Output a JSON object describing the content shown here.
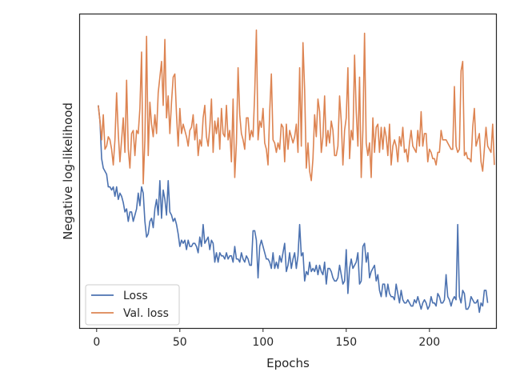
{
  "chart_data": {
    "type": "line",
    "title": "",
    "xlabel": "Epochs",
    "ylabel": "Negative log-likelihood",
    "xlim": [
      -10,
      240
    ],
    "x_ticks": [
      0,
      50,
      100,
      150,
      200
    ],
    "ylim": [
      0,
      100
    ],
    "y_ticks_visible": false,
    "grid": false,
    "legend_position": "lower-left",
    "series": [
      {
        "name": "Loss",
        "color": "#4c72b0",
        "values": [
          71,
          66,
          54,
          51,
          50,
          49,
          45,
          45,
          44,
          45,
          42,
          45,
          41,
          43,
          42,
          40,
          37,
          38,
          34,
          37,
          37,
          34,
          36,
          38,
          43,
          39,
          45,
          43,
          34,
          29,
          30,
          34,
          35,
          32,
          38,
          41,
          36,
          47,
          35,
          44,
          41,
          36,
          47,
          37,
          36,
          34,
          35,
          33,
          30,
          26,
          28,
          27,
          28,
          25,
          28,
          26,
          26,
          27,
          27,
          26,
          24,
          29,
          26,
          33,
          27,
          28,
          29,
          25,
          28,
          27,
          21,
          24,
          21,
          24,
          23,
          23,
          22,
          24,
          22,
          23,
          23,
          21,
          26,
          22,
          22,
          21,
          24,
          22,
          21,
          23,
          22,
          20,
          20,
          31,
          31,
          28,
          16,
          26,
          28,
          26,
          24,
          22,
          22,
          21,
          19,
          24,
          19,
          21,
          19,
          23,
          21,
          24,
          27,
          18,
          20,
          24,
          19,
          22,
          24,
          19,
          23,
          33,
          23,
          24,
          15,
          18,
          17,
          21,
          18,
          19,
          18,
          20,
          17,
          20,
          18,
          17,
          21,
          14,
          19,
          19,
          18,
          16,
          15,
          15,
          16,
          20,
          17,
          14,
          15,
          25,
          11,
          19,
          22,
          19,
          20,
          21,
          24,
          14,
          15,
          26,
          27,
          21,
          24,
          16,
          18,
          19,
          20,
          15,
          17,
          12,
          10,
          14,
          14,
          10,
          14,
          11,
          10,
          10,
          9,
          14,
          11,
          8,
          12,
          9,
          8,
          8,
          9,
          8,
          7,
          7,
          9,
          8,
          10,
          8,
          6,
          8,
          9,
          8,
          6,
          7,
          10,
          8,
          8,
          7,
          11,
          10,
          8,
          8,
          9,
          17,
          10,
          9,
          7,
          9,
          10,
          9,
          33,
          10,
          8,
          12,
          11,
          6,
          6,
          7,
          10,
          9,
          8,
          8,
          9,
          5,
          8,
          7,
          12,
          12,
          8
        ]
      },
      {
        "name": "Val. loss",
        "color": "#dd8452",
        "values": [
          71,
          66,
          60,
          68,
          57,
          58,
          61,
          60,
          57,
          52,
          60,
          75,
          62,
          53,
          60,
          67,
          56,
          79,
          57,
          51,
          62,
          63,
          55,
          63,
          62,
          70,
          88,
          46,
          60,
          93,
          55,
          72,
          65,
          61,
          68,
          62,
          75,
          80,
          85,
          71,
          92,
          67,
          74,
          62,
          72,
          80,
          81,
          68,
          58,
          70,
          62,
          65,
          63,
          61,
          58,
          63,
          64,
          68,
          60,
          65,
          55,
          60,
          58,
          67,
          71,
          61,
          58,
          64,
          73,
          56,
          66,
          62,
          67,
          57,
          70,
          62,
          61,
          71,
          60,
          63,
          53,
          73,
          48,
          59,
          83,
          68,
          62,
          60,
          57,
          67,
          67,
          60,
          63,
          61,
          75,
          95,
          60,
          66,
          64,
          70,
          59,
          57,
          52,
          69,
          81,
          60,
          59,
          56,
          59,
          57,
          65,
          64,
          53,
          65,
          57,
          63,
          61,
          59,
          61,
          65,
          56,
          83,
          58,
          91,
          76,
          51,
          59,
          50,
          47,
          54,
          68,
          61,
          73,
          69,
          56,
          61,
          74,
          58,
          63,
          59,
          66,
          63,
          55,
          55,
          58,
          74,
          66,
          52,
          63,
          67,
          83,
          54,
          63,
          60,
          87,
          69,
          58,
          80,
          48,
          63,
          94,
          59,
          55,
          59,
          48,
          67,
          56,
          64,
          65,
          56,
          64,
          57,
          64,
          61,
          55,
          65,
          52,
          58,
          60,
          58,
          53,
          61,
          58,
          64,
          56,
          57,
          53,
          59,
          63,
          58,
          57,
          56,
          63,
          58,
          69,
          58,
          62,
          62,
          53,
          57,
          56,
          54,
          54,
          52,
          56,
          56,
          63,
          60,
          60,
          60,
          59,
          58,
          57,
          57,
          77,
          58,
          56,
          57,
          82,
          85,
          55,
          56,
          54,
          54,
          53,
          64,
          70,
          58,
          60,
          62,
          53,
          50,
          57,
          64,
          58,
          57,
          56,
          65,
          52
        ]
      }
    ]
  }
}
